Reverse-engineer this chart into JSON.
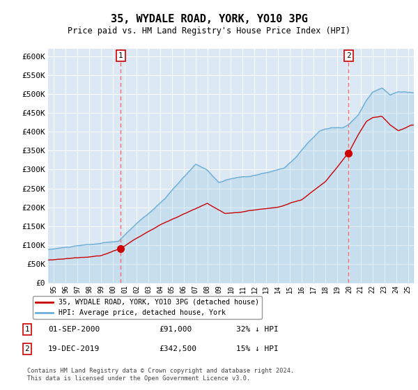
{
  "title": "35, WYDALE ROAD, YORK, YO10 3PG",
  "subtitle": "Price paid vs. HM Land Registry's House Price Index (HPI)",
  "legend_line1": "35, WYDALE ROAD, YORK, YO10 3PG (detached house)",
  "legend_line2": "HPI: Average price, detached house, York",
  "annotation1_date": "01-SEP-2000",
  "annotation1_price": "£91,000",
  "annotation1_hpi": "32% ↓ HPI",
  "annotation2_date": "19-DEC-2019",
  "annotation2_price": "£342,500",
  "annotation2_hpi": "15% ↓ HPI",
  "footnote": "Contains HM Land Registry data © Crown copyright and database right 2024.\nThis data is licensed under the Open Government Licence v3.0.",
  "hpi_color": "#6baed6",
  "price_color": "#cc0000",
  "marker_color": "#cc0000",
  "dashed_color": "#ff6666",
  "plot_bg": "#dce9f5",
  "ylim": [
    0,
    620000
  ],
  "yticks": [
    0,
    50000,
    100000,
    150000,
    200000,
    250000,
    300000,
    350000,
    400000,
    450000,
    500000,
    550000,
    600000
  ],
  "sale1_x": 2000.67,
  "sale1_y": 91000,
  "sale2_x": 2019.96,
  "sale2_y": 342500,
  "xmin": 1994.5,
  "xmax": 2025.5,
  "hpi_key_x": [
    1994.5,
    1995.5,
    1997.0,
    1999.0,
    2000.5,
    2002.0,
    2003.5,
    2004.5,
    2005.5,
    2007.0,
    2008.0,
    2009.0,
    2009.5,
    2010.5,
    2011.5,
    2012.5,
    2013.5,
    2014.5,
    2015.5,
    2016.5,
    2017.5,
    2018.5,
    2019.5,
    2020.0,
    2020.8,
    2021.5,
    2022.0,
    2022.8,
    2023.5,
    2024.2,
    2025.3
  ],
  "hpi_key_y": [
    88000,
    92000,
    97000,
    103000,
    108000,
    155000,
    195000,
    225000,
    260000,
    310000,
    295000,
    262000,
    268000,
    275000,
    278000,
    285000,
    292000,
    302000,
    330000,
    368000,
    400000,
    408000,
    407000,
    415000,
    440000,
    480000,
    500000,
    510000,
    492000,
    500000,
    498000
  ],
  "prop_key_x": [
    1994.5,
    1995.5,
    1997.0,
    1999.0,
    2000.67,
    2002.5,
    2004.0,
    2006.5,
    2008.0,
    2009.5,
    2010.5,
    2012.0,
    2014.0,
    2016.0,
    2018.0,
    2019.96,
    2020.8,
    2021.5,
    2022.0,
    2022.8,
    2023.5,
    2024.2,
    2025.3
  ],
  "prop_key_y": [
    60000,
    63000,
    67000,
    72000,
    91000,
    128000,
    155000,
    190000,
    210000,
    182000,
    185000,
    192000,
    200000,
    220000,
    268000,
    342500,
    390000,
    425000,
    435000,
    438000,
    415000,
    400000,
    415000
  ]
}
